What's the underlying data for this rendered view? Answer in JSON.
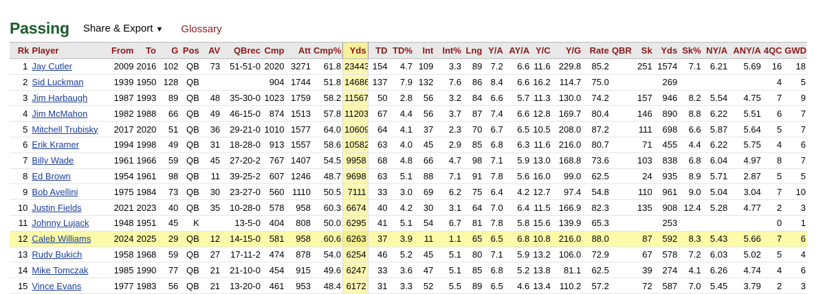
{
  "header": {
    "title": "Passing",
    "share_export_label": "Share & Export",
    "caret": "▼",
    "glossary_label": "Glossary"
  },
  "table": {
    "columns": [
      "Rk",
      "Player",
      "From",
      "To",
      "G",
      "Pos",
      "AV",
      "QBrec",
      "Cmp",
      "Att",
      "Cmp%",
      "Yds",
      "TD",
      "TD%",
      "Int",
      "Int%",
      "Lng",
      "Y/A",
      "AY/A",
      "Y/C",
      "Y/G",
      "Rate",
      "QBR",
      "Sk",
      "Yds",
      "Sk%",
      "NY/A",
      "ANY/A",
      "4QC",
      "GWD"
    ],
    "rows": [
      [
        "1",
        "Jay Cutler",
        "2009",
        "2016",
        "102",
        "QB",
        "73",
        "51-51-0",
        "2020",
        "3271",
        "61.8",
        "23443",
        "154",
        "4.7",
        "109",
        "3.3",
        "89",
        "7.2",
        "6.6",
        "11.6",
        "229.8",
        "85.2",
        "",
        "251",
        "1574",
        "7.1",
        "6.21",
        "5.69",
        "16",
        "18"
      ],
      [
        "2",
        "Sid Luckman",
        "1939",
        "1950",
        "128",
        "QB",
        "",
        "",
        "904",
        "1744",
        "51.8",
        "14686",
        "137",
        "7.9",
        "132",
        "7.6",
        "86",
        "8.4",
        "6.6",
        "16.2",
        "114.7",
        "75.0",
        "",
        "",
        "269",
        "",
        "",
        "",
        "4",
        "5"
      ],
      [
        "3",
        "Jim Harbaugh",
        "1987",
        "1993",
        "89",
        "QB",
        "48",
        "35-30-0",
        "1023",
        "1759",
        "58.2",
        "11567",
        "50",
        "2.8",
        "56",
        "3.2",
        "84",
        "6.6",
        "5.7",
        "11.3",
        "130.0",
        "74.2",
        "",
        "157",
        "946",
        "8.2",
        "5.54",
        "4.75",
        "7",
        "9"
      ],
      [
        "4",
        "Jim McMahon",
        "1982",
        "1988",
        "66",
        "QB",
        "49",
        "46-15-0",
        "874",
        "1513",
        "57.8",
        "11203",
        "67",
        "4.4",
        "56",
        "3.7",
        "87",
        "7.4",
        "6.6",
        "12.8",
        "169.7",
        "80.4",
        "",
        "146",
        "890",
        "8.8",
        "6.22",
        "5.51",
        "6",
        "7"
      ],
      [
        "5",
        "Mitchell Trubisky",
        "2017",
        "2020",
        "51",
        "QB",
        "36",
        "29-21-0",
        "1010",
        "1577",
        "64.0",
        "10609",
        "64",
        "4.1",
        "37",
        "2.3",
        "70",
        "6.7",
        "6.5",
        "10.5",
        "208.0",
        "87.2",
        "",
        "111",
        "698",
        "6.6",
        "5.87",
        "5.64",
        "5",
        "7"
      ],
      [
        "6",
        "Erik Kramer",
        "1994",
        "1998",
        "49",
        "QB",
        "31",
        "18-28-0",
        "913",
        "1557",
        "58.6",
        "10582",
        "63",
        "4.0",
        "45",
        "2.9",
        "85",
        "6.8",
        "6.3",
        "11.6",
        "216.0",
        "80.7",
        "",
        "71",
        "455",
        "4.4",
        "6.22",
        "5.75",
        "4",
        "6"
      ],
      [
        "7",
        "Billy Wade",
        "1961",
        "1966",
        "59",
        "QB",
        "45",
        "27-20-2",
        "767",
        "1407",
        "54.5",
        "9958",
        "68",
        "4.8",
        "66",
        "4.7",
        "98",
        "7.1",
        "5.9",
        "13.0",
        "168.8",
        "73.6",
        "",
        "103",
        "838",
        "6.8",
        "6.04",
        "4.97",
        "8",
        "7"
      ],
      [
        "8",
        "Ed Brown",
        "1954",
        "1961",
        "98",
        "QB",
        "11",
        "39-25-2",
        "607",
        "1246",
        "48.7",
        "9698",
        "63",
        "5.1",
        "88",
        "7.1",
        "91",
        "7.8",
        "5.6",
        "16.0",
        "99.0",
        "62.5",
        "",
        "24",
        "935",
        "8.9",
        "5.71",
        "2.87",
        "5",
        "5"
      ],
      [
        "9",
        "Bob Avellini",
        "1975",
        "1984",
        "73",
        "QB",
        "30",
        "23-27-0",
        "560",
        "1110",
        "50.5",
        "7111",
        "33",
        "3.0",
        "69",
        "6.2",
        "75",
        "6.4",
        "4.2",
        "12.7",
        "97.4",
        "54.8",
        "",
        "110",
        "961",
        "9.0",
        "5.04",
        "3.04",
        "7",
        "10"
      ],
      [
        "10",
        "Justin Fields",
        "2021",
        "2023",
        "40",
        "QB",
        "35",
        "10-28-0",
        "578",
        "958",
        "60.3",
        "6674",
        "40",
        "4.2",
        "30",
        "3.1",
        "64",
        "7.0",
        "6.4",
        "11.5",
        "166.9",
        "82.3",
        "",
        "135",
        "908",
        "12.4",
        "5.28",
        "4.77",
        "2",
        "3"
      ],
      [
        "11",
        "Johnny Lujack",
        "1948",
        "1951",
        "45",
        "K",
        "",
        "13-5-0",
        "404",
        "808",
        "50.0",
        "6295",
        "41",
        "5.1",
        "54",
        "6.7",
        "81",
        "7.8",
        "5.8",
        "15.6",
        "139.9",
        "65.3",
        "",
        "",
        "253",
        "",
        "",
        "",
        "0",
        "1"
      ],
      [
        "12",
        "Caleb Williams",
        "2024",
        "2025",
        "29",
        "QB",
        "12",
        "14-15-0",
        "581",
        "958",
        "60.6",
        "6263",
        "37",
        "3.9",
        "11",
        "1.1",
        "65",
        "6.5",
        "6.8",
        "10.8",
        "216.0",
        "88.0",
        "",
        "87",
        "592",
        "8.3",
        "5.43",
        "5.66",
        "7",
        "6"
      ],
      [
        "13",
        "Rudy Bukich",
        "1958",
        "1968",
        "59",
        "QB",
        "27",
        "17-11-2",
        "474",
        "878",
        "54.0",
        "6254",
        "46",
        "5.2",
        "45",
        "5.1",
        "80",
        "7.1",
        "5.9",
        "13.2",
        "106.0",
        "72.9",
        "",
        "67",
        "578",
        "7.2",
        "6.03",
        "5.02",
        "5",
        "4"
      ],
      [
        "14",
        "Mike Tomczak",
        "1985",
        "1990",
        "77",
        "QB",
        "21",
        "21-10-0",
        "454",
        "915",
        "49.6",
        "6247",
        "33",
        "3.6",
        "47",
        "5.1",
        "85",
        "6.8",
        "5.2",
        "13.8",
        "81.1",
        "62.5",
        "",
        "39",
        "274",
        "4.1",
        "6.26",
        "4.74",
        "4",
        "6"
      ],
      [
        "15",
        "Vince Evans",
        "1977",
        "1983",
        "56",
        "QB",
        "21",
        "13-20-0",
        "461",
        "953",
        "48.4",
        "6172",
        "31",
        "3.3",
        "52",
        "5.5",
        "89",
        "6.5",
        "4.6",
        "13.4",
        "110.2",
        "57.2",
        "",
        "72",
        "587",
        "7.0",
        "5.45",
        "3.79",
        "2",
        "3"
      ]
    ],
    "highlight_row": 11,
    "sorted_column": 11
  }
}
